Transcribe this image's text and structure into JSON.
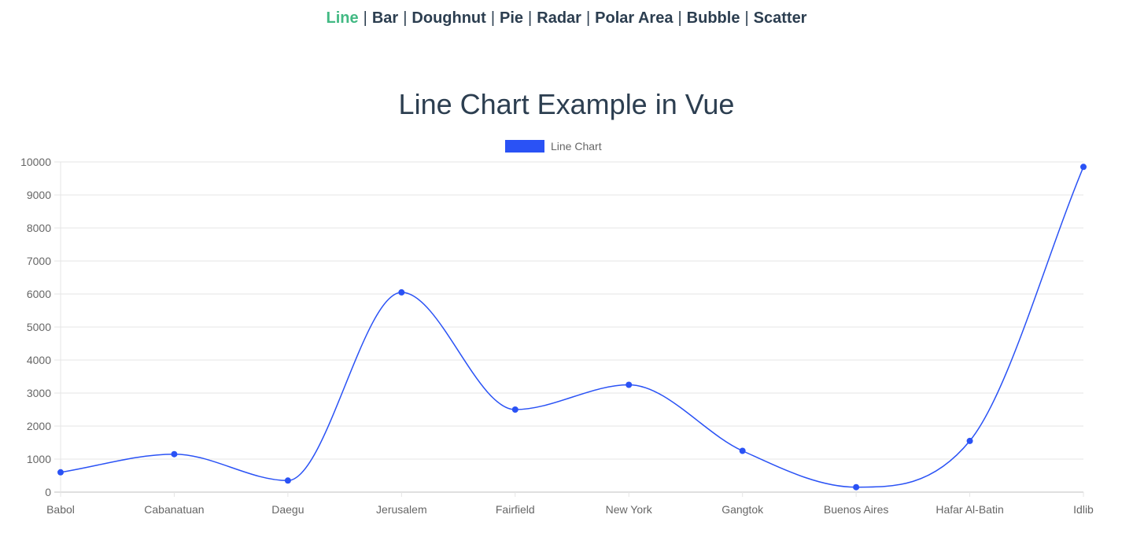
{
  "nav": {
    "items": [
      {
        "label": "Line",
        "active": true
      },
      {
        "label": "Bar",
        "active": false
      },
      {
        "label": "Doughnut",
        "active": false
      },
      {
        "label": "Pie",
        "active": false
      },
      {
        "label": "Radar",
        "active": false
      },
      {
        "label": "Polar Area",
        "active": false
      },
      {
        "label": "Bubble",
        "active": false
      },
      {
        "label": "Scatter",
        "active": false
      }
    ]
  },
  "page": {
    "title": "Line Chart Example in Vue"
  },
  "colors": {
    "series": "#2a52f5",
    "active_nav": "#42b983",
    "text": "#2c3e50",
    "grid": "#e5e5e5",
    "tick": "#666666"
  },
  "chart_data": {
    "type": "line",
    "categories": [
      "Babol",
      "Cabanatuan",
      "Daegu",
      "Jerusalem",
      "Fairfield",
      "New York",
      "Gangtok",
      "Buenos Aires",
      "Hafar Al-Batin",
      "Idlib"
    ],
    "series": [
      {
        "name": "Line Chart",
        "values": [
          600,
          1150,
          350,
          6050,
          2500,
          3250,
          1250,
          150,
          1550,
          9850
        ]
      }
    ],
    "ylim": [
      0,
      10000
    ],
    "yticks": [
      0,
      1000,
      2000,
      3000,
      4000,
      5000,
      6000,
      7000,
      8000,
      9000,
      10000
    ],
    "legend_position": "top",
    "grid": true,
    "curve": "smooth"
  }
}
